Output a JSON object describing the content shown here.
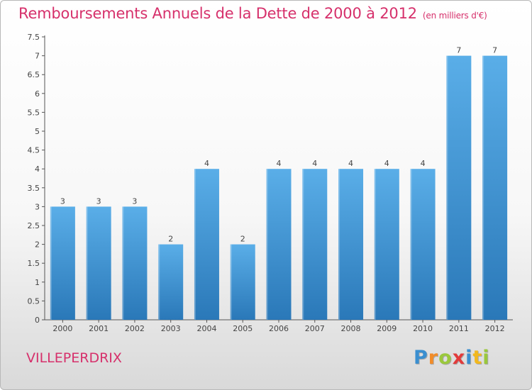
{
  "header": {
    "title": "Remboursements Annuels de la Dette de 2000 à 2012",
    "subtitle": "(en milliers d'€)"
  },
  "footer": {
    "town": "VILLEPERDRIX",
    "logo_letters": [
      {
        "ch": "P",
        "color": "#3a8fd0"
      },
      {
        "ch": "r",
        "color": "#f28c28"
      },
      {
        "ch": "o",
        "color": "#9ac83c"
      },
      {
        "ch": "x",
        "color": "#e23b3b"
      },
      {
        "ch": "i",
        "color": "#3a8fd0"
      },
      {
        "ch": "t",
        "color": "#f2b81e"
      },
      {
        "ch": "i",
        "color": "#9ac83c"
      }
    ]
  },
  "chart_data": {
    "type": "bar",
    "categories": [
      "2000",
      "2001",
      "2002",
      "2003",
      "2004",
      "2005",
      "2006",
      "2007",
      "2008",
      "2009",
      "2010",
      "2011",
      "2012"
    ],
    "values": [
      3,
      3,
      3,
      2,
      4,
      2,
      4,
      4,
      4,
      4,
      4,
      7,
      7
    ],
    "ylim": [
      0,
      7.5
    ],
    "yticks": [
      0,
      0.5,
      1,
      1.5,
      2,
      2.5,
      3,
      3.5,
      4,
      4.5,
      5,
      5.5,
      6,
      6.5,
      7,
      7.5
    ],
    "ytick_labels": [
      "0",
      "0.5",
      "1",
      "1.5",
      "2",
      "2.5",
      "3",
      "3.5",
      "4",
      "4.5",
      "5",
      "5.5",
      "6",
      "6.5",
      "7",
      "7.5"
    ],
    "data_labels": [
      "3",
      "3",
      "3",
      "2",
      "4",
      "2",
      "4",
      "4",
      "4",
      "4",
      "4",
      "7",
      "7"
    ],
    "grid": false,
    "colors": {
      "bar_top": "#5aaee8",
      "bar_bottom": "#2a78b8",
      "axis": "#555555",
      "label": "#444444"
    }
  }
}
